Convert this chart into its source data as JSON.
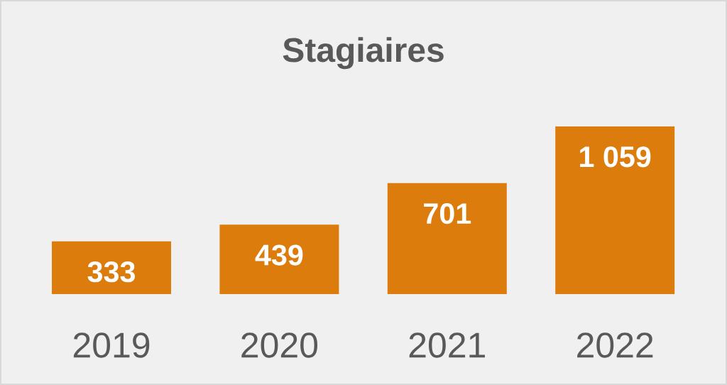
{
  "chart_data": {
    "type": "bar",
    "title": "Stagiaires",
    "categories": [
      "2019",
      "2020",
      "2021",
      "2022"
    ],
    "values": [
      333,
      439,
      701,
      1059
    ],
    "value_labels": [
      "333",
      "439",
      "701",
      "1 059"
    ],
    "color": "#dc7c0c",
    "tick_labels": "x"
  }
}
